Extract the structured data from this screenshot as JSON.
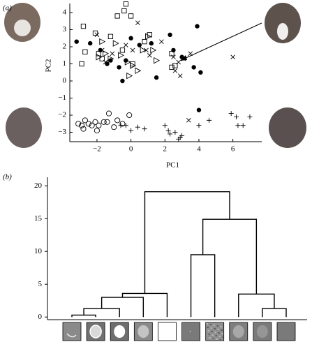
{
  "chart_data": [
    {
      "type": "scatter",
      "panel_label": "(a)",
      "xlabel": "PC1",
      "ylabel": "PC2",
      "color": "#000000",
      "xlim": [
        -3.6,
        7.7
      ],
      "ylim": [
        -3.55,
        4.53
      ],
      "xticks": [
        {
          "value": -2,
          "label": "−2"
        },
        0,
        2,
        4,
        6
      ],
      "yticks": [
        {
          "value": -3,
          "label": "−3"
        },
        {
          "value": -2,
          "label": "−2"
        },
        {
          "value": -1,
          "label": "−1"
        },
        0,
        1,
        2,
        3,
        4
      ],
      "series": [
        {
          "marker": "filled-circle",
          "x": [
            -3.2,
            -2.4,
            -1.8,
            -1.2,
            -0.5,
            -0.3,
            0,
            0.5,
            1.2,
            1.5,
            2.3,
            2.5,
            3,
            3.9,
            4.1,
            3.7,
            4,
            -0.7,
            -1.4
          ],
          "values": [
            2.3,
            2.2,
            1.8,
            1.2,
            0,
            1.2,
            2.5,
            2.1,
            2.2,
            0.2,
            2.7,
            1.8,
            1.4,
            3.2,
            0.5,
            0.8,
            -1.7,
            0.8,
            1
          ]
        },
        {
          "marker": "open-square",
          "x": [
            -2.8,
            -2.7,
            -2.9,
            -2.1,
            -1.9,
            -1.7,
            -1.2,
            -0.8,
            -0.4,
            -0.3,
            0,
            -0.5,
            0.1,
            0.8,
            1.1,
            2.4,
            2.4,
            2.6
          ],
          "values": [
            3.2,
            1.7,
            1,
            2.8,
            1.6,
            1.3,
            2.6,
            3.8,
            4.1,
            4.5,
            3.8,
            1.8,
            1,
            2.3,
            2.7,
            1.6,
            0.8,
            0.9
          ]
        },
        {
          "marker": "x",
          "x": [
            -2,
            -1.7,
            -1.5,
            -1.1,
            -0.3,
            0.1,
            0.4,
            0.9,
            1.1,
            1.8,
            2.5,
            2.8,
            3.1,
            3.5,
            6,
            2.9,
            3.4,
            2.6
          ],
          "values": [
            2.7,
            1.8,
            1.1,
            1.6,
            2.1,
            1.8,
            3.4,
            1.8,
            1.5,
            2.3,
            1.4,
            1.1,
            1.3,
            1.6,
            1.4,
            0.3,
            -2.3,
            0.6
          ]
        },
        {
          "marker": "triangle-right",
          "x": [
            -1.7,
            -1.5,
            -1.2,
            -0.9,
            -0.6,
            -0.2,
            0.1,
            0.4,
            0.7,
            1,
            1.3,
            1.5,
            -1.9,
            -0.1
          ],
          "values": [
            2.3,
            1.6,
            1.3,
            2.2,
            1.5,
            1.1,
            0.9,
            0.6,
            1.8,
            2.6,
            1.8,
            1.2,
            1.4,
            0.3
          ]
        },
        {
          "marker": "open-circle",
          "x": [
            -3.1,
            -2.9,
            -2.8,
            -2.7,
            -2.5,
            -2.3,
            -2.1,
            -1.9,
            -1.6,
            -1.4,
            -1,
            -0.8,
            -0.1,
            -0.5,
            -1.3,
            -2
          ],
          "values": [
            -2.5,
            -2.6,
            -2.8,
            -2.3,
            -2.5,
            -2.6,
            -2.4,
            -2.6,
            -2.4,
            -2.4,
            -2.7,
            -2.3,
            -2,
            -2.5,
            -1.9,
            -2.9
          ]
        },
        {
          "marker": "plus",
          "x": [
            -0.6,
            -0.3,
            0,
            0.4,
            0.8,
            2.2,
            2.3,
            2.6,
            2.8,
            2.9,
            3,
            4,
            4.6,
            5.9,
            6.2,
            6.3,
            6.6,
            7,
            2
          ],
          "values": [
            -2.6,
            -2.6,
            -2.9,
            -2.7,
            -2.8,
            -2.9,
            -3.1,
            -3,
            -3.4,
            -3.3,
            -3.2,
            -2.6,
            -2.3,
            -1.9,
            -2.1,
            -2.6,
            -2.6,
            -2.1,
            -2.6
          ]
        }
      ]
    },
    {
      "type": "dendrogram",
      "panel_label": "(b)",
      "color": "#000000",
      "ylim": [
        -0.4,
        21.3
      ],
      "yticks": [
        0,
        5,
        10,
        15,
        20
      ],
      "merges": [
        {
          "children": [
            0,
            1
          ],
          "height": 0.3
        },
        {
          "children": [
            10,
            2
          ],
          "height": 1.3
        },
        {
          "children": [
            11,
            3
          ],
          "height": 3.0
        },
        {
          "children": [
            12,
            4
          ],
          "height": 3.6
        },
        {
          "children": [
            5,
            6
          ],
          "height": 9.5
        },
        {
          "children": [
            8,
            9
          ],
          "height": 1.3
        },
        {
          "children": [
            7,
            15
          ],
          "height": 3.5
        },
        {
          "children": [
            14,
            16
          ],
          "height": 14.9
        },
        {
          "children": [
            13,
            17
          ],
          "height": 19.1
        }
      ]
    }
  ]
}
